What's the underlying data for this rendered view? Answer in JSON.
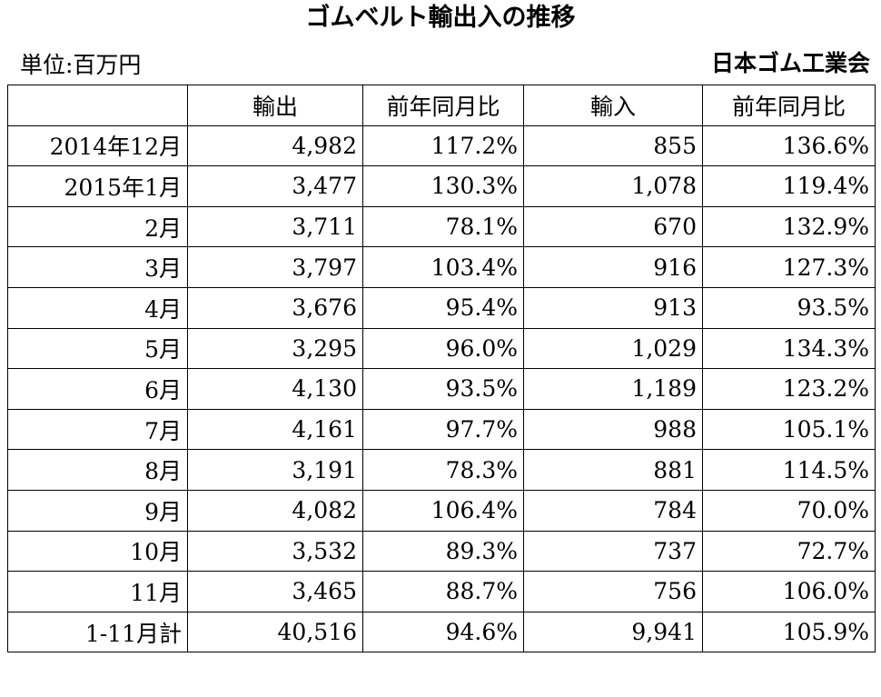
{
  "title": "ゴムベルト輸出入の推移",
  "unit": "単位:百万円",
  "source": "日本ゴム工業会",
  "table": {
    "headers": [
      "",
      "輸出",
      "前年同月比",
      "輸入",
      "前年同月比"
    ],
    "rows": [
      [
        "2014年12月",
        "4,982",
        "117.2%",
        "855",
        "136.6%"
      ],
      [
        "2015年1月",
        "3,477",
        "130.3%",
        "1,078",
        "119.4%"
      ],
      [
        "2月",
        "3,711",
        "78.1%",
        "670",
        "132.9%"
      ],
      [
        "3月",
        "3,797",
        "103.4%",
        "916",
        "127.3%"
      ],
      [
        "4月",
        "3,676",
        "95.4%",
        "913",
        "93.5%"
      ],
      [
        "5月",
        "3,295",
        "96.0%",
        "1,029",
        "134.3%"
      ],
      [
        "6月",
        "4,130",
        "93.5%",
        "1,189",
        "123.2%"
      ],
      [
        "7月",
        "4,161",
        "97.7%",
        "988",
        "105.1%"
      ],
      [
        "8月",
        "3,191",
        "78.3%",
        "881",
        "114.5%"
      ],
      [
        "9月",
        "4,082",
        "106.4%",
        "784",
        "70.0%"
      ],
      [
        "10月",
        "3,532",
        "89.3%",
        "737",
        "72.7%"
      ],
      [
        "11月",
        "3,465",
        "88.7%",
        "756",
        "106.0%"
      ],
      [
        "1-11月計",
        "40,516",
        "94.6%",
        "9,941",
        "105.9%"
      ]
    ]
  }
}
